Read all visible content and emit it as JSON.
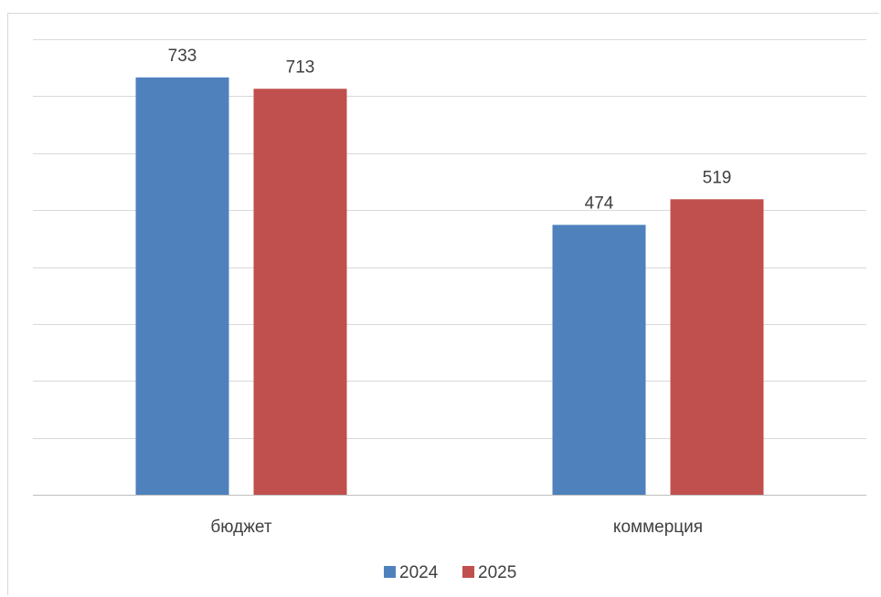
{
  "chart_data": {
    "type": "bar",
    "categories": [
      "бюджет",
      "коммерция"
    ],
    "series": [
      {
        "name": "2024",
        "values": [
          733,
          474
        ],
        "color": "#4f81bd"
      },
      {
        "name": "2025",
        "values": [
          713,
          519
        ],
        "color": "#c0504d"
      }
    ],
    "ylim": [
      0,
      800
    ],
    "grid": true,
    "legend": "bottom",
    "title": "",
    "xlabel": "",
    "ylabel": ""
  }
}
